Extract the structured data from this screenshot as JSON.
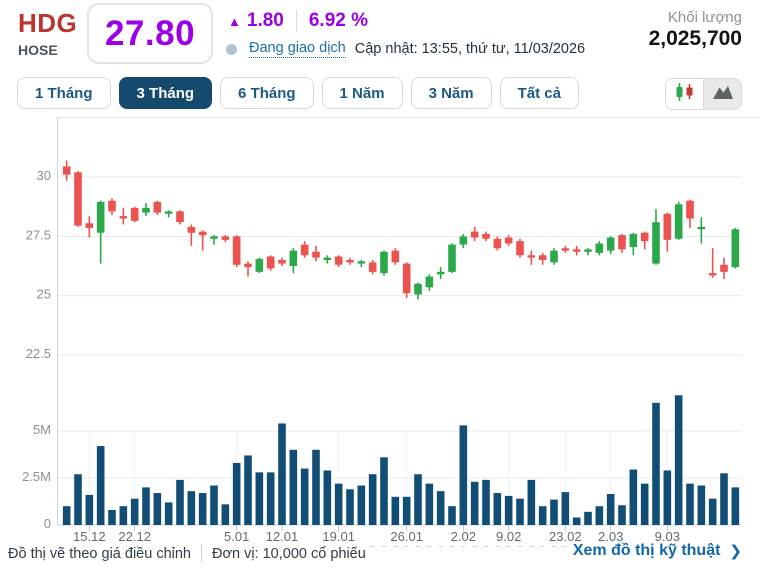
{
  "header": {
    "symbol": "HDG",
    "exchange": "HOSE",
    "price": "27.80",
    "change_arrow": "▲",
    "change_value": "1.80",
    "change_percent": "6.92 %",
    "status_text": "Đang giao dịch",
    "updated_text": "Cập nhật: 13:55, thứ tư, 11/03/2026",
    "volume_label": "Khối lượng",
    "volume_value": "2,025,700"
  },
  "range_tabs": [
    {
      "label": "1 Tháng",
      "active": false
    },
    {
      "label": "3 Tháng",
      "active": true
    },
    {
      "label": "6 Tháng",
      "active": false
    },
    {
      "label": "1 Năm",
      "active": false
    },
    {
      "label": "3 Năm",
      "active": false
    },
    {
      "label": "Tất cả",
      "active": false
    }
  ],
  "chart_type_toggle": {
    "options": [
      {
        "name": "candlestick",
        "selected": true
      },
      {
        "name": "mountain",
        "selected": false
      }
    ]
  },
  "footer": {
    "note_adjusted": "Đồ thị vẽ theo giá điều chỉnh",
    "note_unit": "Đơn vị: 10,000 cổ phiếu",
    "link_text": "Xem đồ thị kỹ thuật",
    "link_chevron": "❯"
  },
  "colors": {
    "symbol_red": "#bb342e",
    "ceiling_purple": "#9b00e8",
    "status_blue": "#1b6fae",
    "tab_active_navy": "#15496d",
    "link_blue": "#1467a8",
    "up_green": "#2ba84a",
    "down_red": "#ec524e",
    "volume_navy": "#114d74",
    "grid_gray": "#e6e9eb"
  },
  "chart_data": {
    "type": "candlestick",
    "title": "HDG 3-month price and volume chart",
    "price_axis": {
      "labels": [
        "30",
        "27.5",
        "25",
        "22.5"
      ],
      "ticks": [
        30,
        27.5,
        25,
        22.5
      ]
    },
    "volume_axis": {
      "labels": [
        "5M",
        "2.5M",
        "0"
      ],
      "ticks": [
        5,
        2.5,
        0
      ]
    },
    "x_axis": {
      "labels": [
        {
          "label": "15.12",
          "candle": 2
        },
        {
          "label": "22.12",
          "candle": 6
        },
        {
          "label": "5.01",
          "candle": 15
        },
        {
          "label": "12.01",
          "candle": 19
        },
        {
          "label": "19.01",
          "candle": 24
        },
        {
          "label": "26.01",
          "candle": 30
        },
        {
          "label": "2.02",
          "candle": 35
        },
        {
          "label": "9.02",
          "candle": 39
        },
        {
          "label": "23.02",
          "candle": 44
        },
        {
          "label": "2.03",
          "candle": 48
        },
        {
          "label": "9.03",
          "candle": 53
        }
      ]
    },
    "series_note": "candles = [open, high, low, close, volume_millions]",
    "candles": [
      [
        30.45,
        30.7,
        29.85,
        30.1,
        1.0
      ],
      [
        30.2,
        30.25,
        27.9,
        27.95,
        2.7
      ],
      [
        28.05,
        28.35,
        27.45,
        27.85,
        1.6
      ],
      [
        27.65,
        29.0,
        26.35,
        28.95,
        4.2
      ],
      [
        29.0,
        29.1,
        28.4,
        28.55,
        0.8
      ],
      [
        28.35,
        28.7,
        28.0,
        28.25,
        1.0
      ],
      [
        28.7,
        28.75,
        28.1,
        28.15,
        1.4
      ],
      [
        28.5,
        28.9,
        28.35,
        28.7,
        2.0
      ],
      [
        28.95,
        29.0,
        28.4,
        28.5,
        1.7
      ],
      [
        28.45,
        28.6,
        28.3,
        28.55,
        1.2
      ],
      [
        28.55,
        28.6,
        28.0,
        28.1,
        2.4
      ],
      [
        27.9,
        28.0,
        27.1,
        27.65,
        1.8
      ],
      [
        27.7,
        27.75,
        26.9,
        27.55,
        1.7
      ],
      [
        27.4,
        27.55,
        27.15,
        27.5,
        2.1
      ],
      [
        27.5,
        27.55,
        27.25,
        27.35,
        1.1
      ],
      [
        27.5,
        27.55,
        26.2,
        26.3,
        3.3
      ],
      [
        26.35,
        26.45,
        25.8,
        26.2,
        3.7
      ],
      [
        26.0,
        26.6,
        25.95,
        26.55,
        2.8
      ],
      [
        26.65,
        26.7,
        26.05,
        26.15,
        2.8
      ],
      [
        26.5,
        26.6,
        26.25,
        26.35,
        5.4
      ],
      [
        26.25,
        27.0,
        25.95,
        26.9,
        4.0
      ],
      [
        27.15,
        27.3,
        26.6,
        26.7,
        3.0
      ],
      [
        26.85,
        27.1,
        26.45,
        26.6,
        4.0
      ],
      [
        26.5,
        26.7,
        26.35,
        26.6,
        2.9
      ],
      [
        26.65,
        26.7,
        26.2,
        26.3,
        2.2
      ],
      [
        26.5,
        26.6,
        26.3,
        26.4,
        1.9
      ],
      [
        26.35,
        26.5,
        26.2,
        26.45,
        2.1
      ],
      [
        26.4,
        26.5,
        25.9,
        26.0,
        2.7
      ],
      [
        25.95,
        26.9,
        25.85,
        26.85,
        3.6
      ],
      [
        26.9,
        27.0,
        26.3,
        26.4,
        1.5
      ],
      [
        26.35,
        26.4,
        24.9,
        25.1,
        1.5
      ],
      [
        25.05,
        25.55,
        24.85,
        25.5,
        2.7
      ],
      [
        25.35,
        25.9,
        25.2,
        25.8,
        2.2
      ],
      [
        25.9,
        26.2,
        25.7,
        26.0,
        1.8
      ],
      [
        26.0,
        27.2,
        25.95,
        27.15,
        1.0
      ],
      [
        27.15,
        27.6,
        27.0,
        27.5,
        5.3
      ],
      [
        27.7,
        27.9,
        27.3,
        27.45,
        2.3
      ],
      [
        27.6,
        27.7,
        27.3,
        27.4,
        2.4
      ],
      [
        27.4,
        27.5,
        26.9,
        27.0,
        1.7
      ],
      [
        27.45,
        27.55,
        27.1,
        27.2,
        1.55
      ],
      [
        27.3,
        27.4,
        26.6,
        26.7,
        1.4
      ],
      [
        26.7,
        26.9,
        26.3,
        26.6,
        2.4
      ],
      [
        26.7,
        26.8,
        26.3,
        26.5,
        1.0
      ],
      [
        26.4,
        27.0,
        26.3,
        26.9,
        1.35
      ],
      [
        27.0,
        27.1,
        26.8,
        26.9,
        1.75
      ],
      [
        26.95,
        27.1,
        26.7,
        26.85,
        0.4
      ],
      [
        26.85,
        27.0,
        26.7,
        26.95,
        0.7
      ],
      [
        26.8,
        27.3,
        26.7,
        27.2,
        1.0
      ],
      [
        26.9,
        27.5,
        26.75,
        27.45,
        1.65
      ],
      [
        27.55,
        27.6,
        26.8,
        26.95,
        1.05
      ],
      [
        27.05,
        27.65,
        26.7,
        27.6,
        2.95
      ],
      [
        27.65,
        27.7,
        26.95,
        27.3,
        2.2
      ],
      [
        26.35,
        28.65,
        26.3,
        28.1,
        6.5
      ],
      [
        28.45,
        28.5,
        26.85,
        27.35,
        2.9
      ],
      [
        27.4,
        28.95,
        27.35,
        28.85,
        6.9
      ],
      [
        29.0,
        29.05,
        27.85,
        28.25,
        2.2
      ],
      [
        27.8,
        28.3,
        27.2,
        27.9,
        2.1
      ],
      [
        25.95,
        27.0,
        25.75,
        25.85,
        1.4
      ],
      [
        26.3,
        26.6,
        25.7,
        26.0,
        2.75
      ],
      [
        26.2,
        27.85,
        26.15,
        27.8,
        2.0
      ]
    ]
  }
}
